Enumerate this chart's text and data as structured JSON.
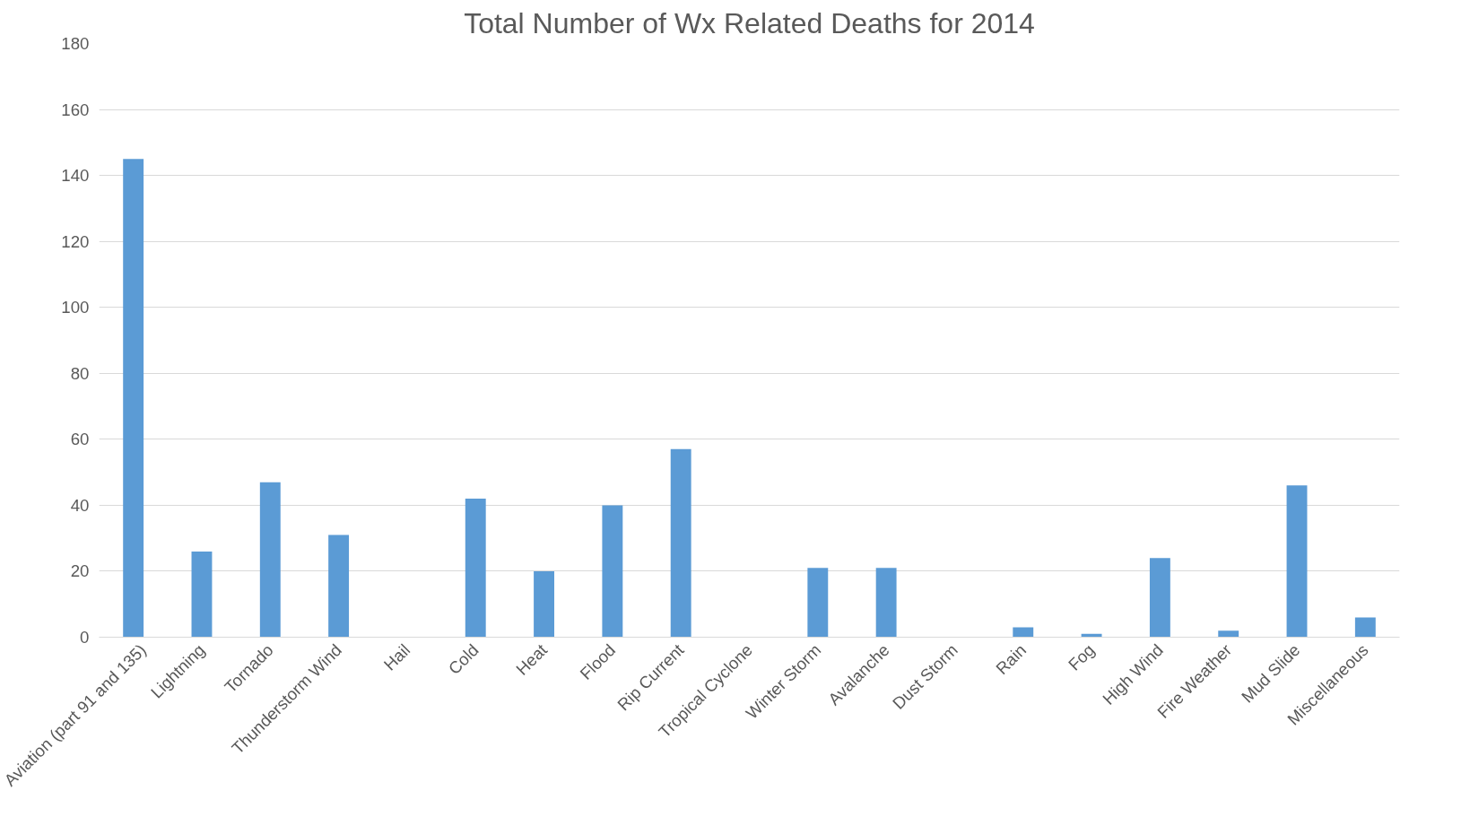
{
  "chart_data": {
    "type": "bar",
    "title": "Total Number of Wx Related Deaths for 2014",
    "categories": [
      "Aviation (part 91 and 135)",
      "Lightning",
      "Tornado",
      "Thunderstorm Wind",
      "Hail",
      "Cold",
      "Heat",
      "Flood",
      "Rip Current",
      "Tropical Cyclone",
      "Winter Storm",
      "Avalanche",
      "Dust Storm",
      "Rain",
      "Fog",
      "High Wind",
      "Fire Weather",
      "Mud Slide",
      "Miscellaneous"
    ],
    "values": [
      145,
      26,
      47,
      31,
      0,
      42,
      20,
      40,
      57,
      0,
      21,
      21,
      0,
      3,
      1,
      24,
      2,
      46,
      6
    ],
    "color": "#5b9bd5",
    "ylim": [
      0,
      180
    ],
    "yticks": [
      0,
      20,
      40,
      60,
      80,
      100,
      120,
      140,
      160,
      180
    ],
    "grid": "y"
  }
}
